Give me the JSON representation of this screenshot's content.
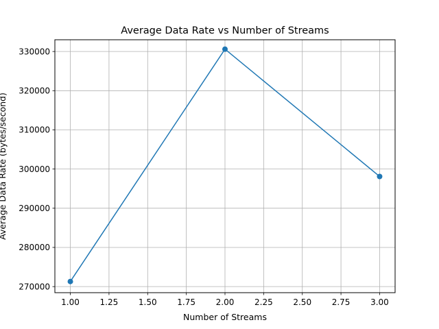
{
  "chart_data": {
    "type": "line",
    "title": "Average Data Rate vs Number of Streams",
    "xlabel": "Number of Streams",
    "ylabel": "Average Data Rate (bytes/second)",
    "xlim": [
      0.9,
      3.1
    ],
    "ylim": [
      268450,
      333000
    ],
    "grid": true,
    "x_ticks": [
      "1.00",
      "1.25",
      "1.50",
      "1.75",
      "2.00",
      "2.25",
      "2.50",
      "2.75",
      "3.00"
    ],
    "y_ticks": [
      "270000",
      "280000",
      "290000",
      "300000",
      "310000",
      "320000",
      "330000"
    ],
    "series": [
      {
        "color": "#1f77b4",
        "marker": "circle",
        "x": [
          1,
          2,
          3
        ],
        "y": [
          271300,
          330600,
          298100
        ]
      }
    ]
  }
}
